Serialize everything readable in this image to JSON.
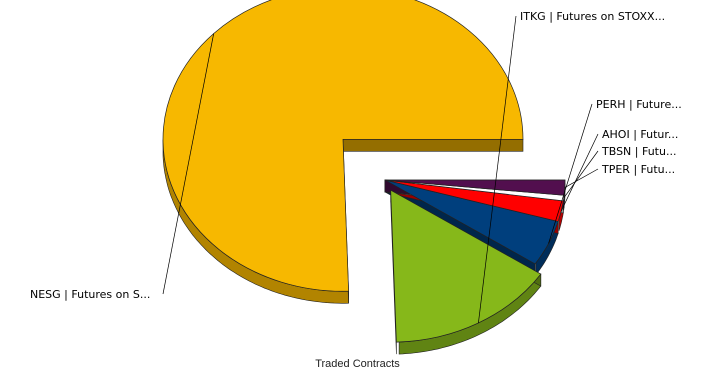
{
  "chart_data": {
    "type": "pie",
    "style": "3d-exploded",
    "title": "Traded Contracts",
    "legend": "none",
    "slices": [
      {
        "label": "NESG | Futures on S...",
        "value": 75.5,
        "color": "#F7B800"
      },
      {
        "label": "ITKG | Futures on STOXX...",
        "value": 15.2,
        "color": "#86B81A"
      },
      {
        "label": "PERH | Future...",
        "value": 4.9,
        "color": "#003F7D"
      },
      {
        "label": "AHOI | Futur...",
        "value": 2.2,
        "color": "#FF0000"
      },
      {
        "label": "TBSN | Futu...",
        "value": 0.6,
        "color": "#FFFFFF"
      },
      {
        "label": "TPER | Futu...",
        "value": 1.6,
        "color": "#520F4E"
      }
    ]
  }
}
